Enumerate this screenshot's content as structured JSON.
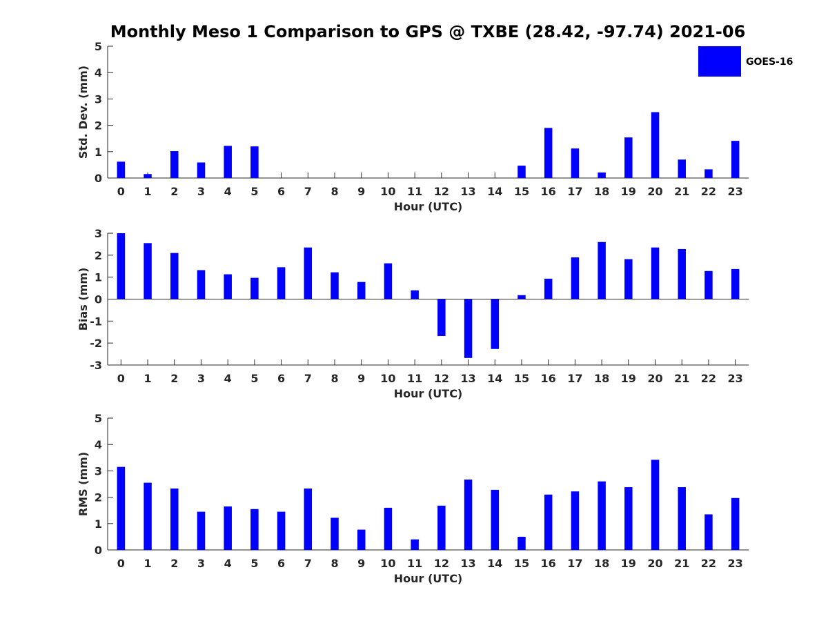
{
  "title": "Monthly Meso 1 Comparison to GPS @ TXBE (28.42, -97.74) 2021-06",
  "legend": {
    "label": "GOES-16",
    "color": "#0000ff"
  },
  "chart_data": [
    {
      "type": "bar",
      "ylabel": "Std. Dev. (mm)",
      "xlabel": "Hour (UTC)",
      "ylim": [
        0,
        5
      ],
      "yticks": [
        0,
        1,
        2,
        3,
        4,
        5
      ],
      "categories": [
        "0",
        "1",
        "2",
        "3",
        "4",
        "5",
        "6",
        "7",
        "8",
        "9",
        "10",
        "11",
        "12",
        "13",
        "14",
        "15",
        "16",
        "17",
        "18",
        "19",
        "20",
        "21",
        "22",
        "23"
      ],
      "series": [
        {
          "name": "GOES-16",
          "values": [
            0.62,
            0.15,
            1.02,
            0.59,
            1.22,
            1.2,
            0,
            0,
            0,
            0,
            0,
            0,
            0,
            0,
            0,
            0.47,
            1.9,
            1.12,
            0.21,
            1.54,
            2.5,
            0.7,
            0.33,
            1.41
          ]
        }
      ]
    },
    {
      "type": "bar",
      "ylabel": "Bias (mm)",
      "xlabel": "Hour (UTC)",
      "ylim": [
        -3,
        3
      ],
      "yticks": [
        -3,
        -2,
        -1,
        0,
        1,
        2,
        3
      ],
      "categories": [
        "0",
        "1",
        "2",
        "3",
        "4",
        "5",
        "6",
        "7",
        "8",
        "9",
        "10",
        "11",
        "12",
        "13",
        "14",
        "15",
        "16",
        "17",
        "18",
        "19",
        "20",
        "21",
        "22",
        "23"
      ],
      "series": [
        {
          "name": "GOES-16",
          "values": [
            3.0,
            2.55,
            2.1,
            1.32,
            1.13,
            0.97,
            1.45,
            2.35,
            1.22,
            0.78,
            1.63,
            0.4,
            -1.68,
            -2.68,
            -2.27,
            0.18,
            0.93,
            1.9,
            2.6,
            1.82,
            2.35,
            2.28,
            1.28,
            1.37
          ]
        }
      ]
    },
    {
      "type": "bar",
      "ylabel": "RMS (mm)",
      "xlabel": "Hour (UTC)",
      "ylim": [
        0,
        5
      ],
      "yticks": [
        0,
        1,
        2,
        3,
        4,
        5
      ],
      "categories": [
        "0",
        "1",
        "2",
        "3",
        "4",
        "5",
        "6",
        "7",
        "8",
        "9",
        "10",
        "11",
        "12",
        "13",
        "14",
        "15",
        "16",
        "17",
        "18",
        "19",
        "20",
        "21",
        "22",
        "23"
      ],
      "series": [
        {
          "name": "GOES-16",
          "values": [
            3.15,
            2.55,
            2.33,
            1.45,
            1.65,
            1.55,
            1.45,
            2.33,
            1.22,
            0.77,
            1.6,
            0.4,
            1.68,
            2.67,
            2.28,
            0.5,
            2.1,
            2.22,
            2.6,
            2.38,
            3.42,
            2.38,
            1.35,
            1.97
          ]
        }
      ]
    }
  ]
}
